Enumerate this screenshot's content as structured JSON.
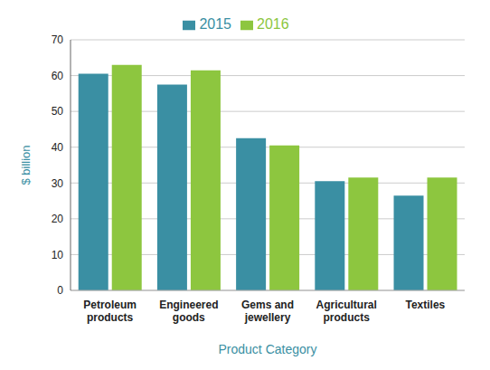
{
  "chart_data": {
    "type": "bar",
    "categories": [
      "Petroleum\nproducts",
      "Engineered\ngoods",
      "Gems and\njewellery",
      "Agricultural\nproducts",
      "Textiles"
    ],
    "series": [
      {
        "name": "2015",
        "color": "#3a8fa3",
        "values": [
          60.5,
          57.5,
          42.5,
          30.5,
          26.5
        ]
      },
      {
        "name": "2016",
        "color": "#8dc63f",
        "values": [
          63.0,
          61.5,
          40.5,
          31.5,
          31.5
        ]
      }
    ],
    "ylabel": "$ billion",
    "xlabel": "Product Category",
    "ylim": [
      0,
      70
    ],
    "yticks": [
      0,
      10,
      20,
      30,
      40,
      50,
      60,
      70
    ],
    "grid": true,
    "legend": "top"
  }
}
